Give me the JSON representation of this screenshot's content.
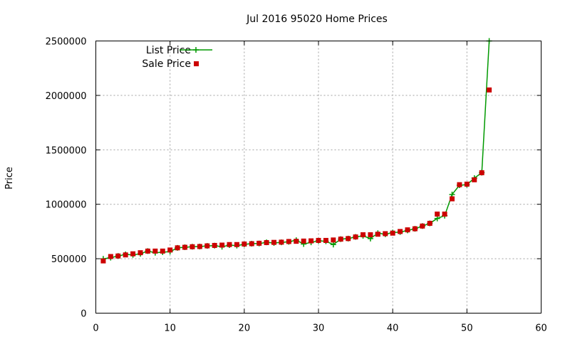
{
  "chart_data": {
    "type": "line",
    "title": "Jul 2016 95020 Home Prices",
    "xlabel": "",
    "ylabel": "Price",
    "xlim": [
      0,
      60
    ],
    "ylim": [
      0,
      2500000
    ],
    "x_ticks": [
      "0",
      "10",
      "20",
      "30",
      "40",
      "50",
      "60"
    ],
    "y_ticks": [
      "0",
      "500000",
      "1000000",
      "1500000",
      "2000000",
      "2500000"
    ],
    "grid": true,
    "legend_position": "top-left",
    "series": [
      {
        "name": "List Price",
        "style": "line-plus",
        "color": "#009900",
        "points": [
          [
            1,
            499000
          ],
          [
            2,
            510000
          ],
          [
            3,
            525000
          ],
          [
            4,
            540000
          ],
          [
            5,
            535000
          ],
          [
            6,
            545000
          ],
          [
            7,
            570000
          ],
          [
            8,
            555000
          ],
          [
            9,
            560000
          ],
          [
            10,
            565000
          ],
          [
            11,
            600000
          ],
          [
            12,
            605000
          ],
          [
            13,
            610000
          ],
          [
            14,
            612000
          ],
          [
            15,
            618000
          ],
          [
            16,
            620000
          ],
          [
            17,
            610000
          ],
          [
            18,
            625000
          ],
          [
            19,
            620000
          ],
          [
            20,
            632000
          ],
          [
            21,
            638000
          ],
          [
            22,
            640000
          ],
          [
            23,
            650000
          ],
          [
            24,
            645000
          ],
          [
            25,
            650000
          ],
          [
            26,
            655000
          ],
          [
            27,
            670000
          ],
          [
            28,
            635000
          ],
          [
            29,
            650000
          ],
          [
            30,
            665000
          ],
          [
            31,
            660000
          ],
          [
            32,
            630000
          ],
          [
            33,
            680000
          ],
          [
            34,
            685000
          ],
          [
            35,
            700000
          ],
          [
            36,
            710000
          ],
          [
            37,
            685000
          ],
          [
            38,
            735000
          ],
          [
            39,
            725000
          ],
          [
            40,
            740000
          ],
          [
            41,
            745000
          ],
          [
            42,
            760000
          ],
          [
            43,
            775000
          ],
          [
            44,
            800000
          ],
          [
            45,
            825000
          ],
          [
            46,
            870000
          ],
          [
            47,
            895000
          ],
          [
            48,
            1090000
          ],
          [
            49,
            1175000
          ],
          [
            50,
            1180000
          ],
          [
            51,
            1240000
          ],
          [
            52,
            1290000
          ],
          [
            53,
            2500000
          ]
        ]
      },
      {
        "name": "Sale Price",
        "style": "square-marker",
        "color": "#cc0000",
        "points": [
          [
            1,
            480000
          ],
          [
            2,
            520000
          ],
          [
            3,
            525000
          ],
          [
            4,
            535000
          ],
          [
            5,
            545000
          ],
          [
            6,
            555000
          ],
          [
            7,
            570000
          ],
          [
            8,
            570000
          ],
          [
            9,
            570000
          ],
          [
            10,
            580000
          ],
          [
            11,
            600000
          ],
          [
            12,
            605000
          ],
          [
            13,
            610000
          ],
          [
            14,
            612000
          ],
          [
            15,
            618000
          ],
          [
            16,
            622000
          ],
          [
            17,
            625000
          ],
          [
            18,
            630000
          ],
          [
            19,
            630000
          ],
          [
            20,
            635000
          ],
          [
            21,
            638000
          ],
          [
            22,
            642000
          ],
          [
            23,
            648000
          ],
          [
            24,
            650000
          ],
          [
            25,
            652000
          ],
          [
            26,
            658000
          ],
          [
            27,
            660000
          ],
          [
            28,
            662000
          ],
          [
            29,
            664000
          ],
          [
            30,
            668000
          ],
          [
            31,
            668000
          ],
          [
            32,
            672000
          ],
          [
            33,
            680000
          ],
          [
            34,
            685000
          ],
          [
            35,
            700000
          ],
          [
            36,
            720000
          ],
          [
            37,
            720000
          ],
          [
            38,
            725000
          ],
          [
            39,
            730000
          ],
          [
            40,
            735000
          ],
          [
            41,
            750000
          ],
          [
            42,
            765000
          ],
          [
            43,
            775000
          ],
          [
            44,
            800000
          ],
          [
            45,
            825000
          ],
          [
            46,
            910000
          ],
          [
            47,
            910000
          ],
          [
            48,
            1050000
          ],
          [
            49,
            1180000
          ],
          [
            50,
            1185000
          ],
          [
            51,
            1225000
          ],
          [
            52,
            1290000
          ],
          [
            53,
            2050000
          ]
        ]
      }
    ]
  }
}
